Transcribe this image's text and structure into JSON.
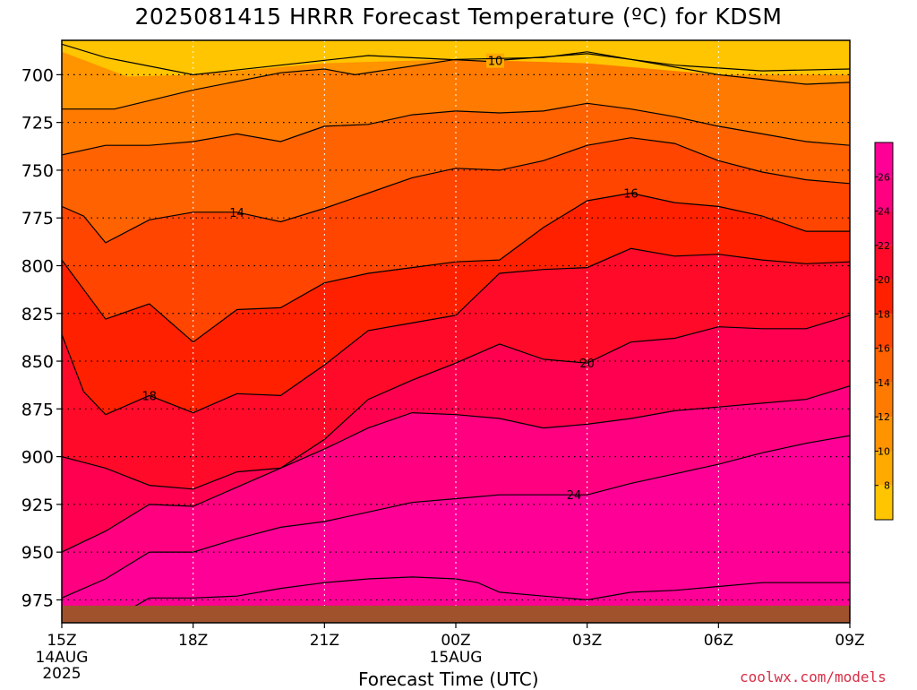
{
  "title": "2025081415 HRRR Forecast Temperature (ºC) for KDSM",
  "credit": "coolwx.com/models",
  "chart_data": {
    "type": "contour",
    "xlabel": "Forecast Time (UTC)",
    "ylabel": "",
    "y_axis_inverted": true,
    "xlim": [
      0,
      18
    ],
    "ylim": [
      682,
      987
    ],
    "x_tick_values": [
      0,
      3,
      6,
      9,
      12,
      15,
      18
    ],
    "x_ticks": [
      {
        "label": "15Z",
        "sub": [
          "14AUG",
          "2025"
        ]
      },
      {
        "label": "18Z",
        "sub": []
      },
      {
        "label": "21Z",
        "sub": []
      },
      {
        "label": "00Z",
        "sub": [
          "15AUG"
        ]
      },
      {
        "label": "03Z",
        "sub": []
      },
      {
        "label": "06Z",
        "sub": []
      },
      {
        "label": "09Z",
        "sub": []
      }
    ],
    "y_ticks": [
      700,
      725,
      750,
      775,
      800,
      825,
      850,
      875,
      900,
      925,
      950,
      975
    ],
    "grid": true,
    "colorbar": {
      "position": "right",
      "ticks": [
        8,
        10,
        12,
        14,
        16,
        18,
        20,
        22,
        24,
        26
      ],
      "bins": [
        {
          "from": 6,
          "to": 8,
          "color": "#ffc500"
        },
        {
          "from": 8,
          "to": 10,
          "color": "#ffaa00"
        },
        {
          "from": 10,
          "to": 12,
          "color": "#ff9300"
        },
        {
          "from": 12,
          "to": 14,
          "color": "#ff7a00"
        },
        {
          "from": 14,
          "to": 16,
          "color": "#ff6200"
        },
        {
          "from": 16,
          "to": 18,
          "color": "#ff4500"
        },
        {
          "from": 18,
          "to": 20,
          "color": "#ff2000"
        },
        {
          "from": 20,
          "to": 22,
          "color": "#ff0a28"
        },
        {
          "from": 22,
          "to": 24,
          "color": "#ff0050"
        },
        {
          "from": 24,
          "to": 26,
          "color": "#ff0080"
        },
        {
          "from": 26,
          "to": 28,
          "color": "#ff0096"
        }
      ]
    },
    "ground_color": "#a0522d",
    "surface_pressure": 978,
    "contours": [
      {
        "level": 8,
        "points": [
          [
            0,
            688
          ],
          [
            1.5,
            701
          ],
          [
            3,
            700
          ],
          [
            6,
            694
          ],
          [
            9,
            692
          ],
          [
            12,
            694
          ],
          [
            15,
            700
          ],
          [
            18,
            700
          ]
        ]
      },
      {
        "level": 10,
        "points": [
          [
            0,
            684
          ],
          [
            1,
            691
          ],
          [
            3,
            700
          ],
          [
            5,
            695
          ],
          [
            7,
            690
          ],
          [
            9.7,
            693
          ],
          [
            12,
            689
          ],
          [
            14,
            695
          ],
          [
            16,
            698
          ],
          [
            18,
            697
          ]
        ],
        "label": {
          "x": 9.9,
          "text": "10"
        }
      },
      {
        "level": 11,
        "points": [
          [
            0,
            691
          ],
          [
            2,
            699
          ],
          [
            3,
            706
          ],
          [
            5,
            701
          ],
          [
            7,
            694
          ],
          [
            9.7,
            692
          ],
          [
            12,
            689
          ],
          [
            14,
            697
          ],
          [
            16,
            700
          ],
          [
            18,
            699
          ]
        ]
      },
      {
        "level": 12,
        "points": [
          [
            0,
            718
          ],
          [
            1.2,
            718
          ],
          [
            3,
            708
          ],
          [
            5,
            699
          ],
          [
            6,
            697
          ],
          [
            6.7,
            700
          ],
          [
            9,
            692
          ],
          [
            11,
            691
          ],
          [
            12,
            688
          ],
          [
            13,
            692
          ],
          [
            15,
            700
          ],
          [
            17,
            705
          ],
          [
            18,
            704
          ]
        ]
      },
      {
        "level": 13,
        "points": [
          [
            0,
            742
          ],
          [
            1,
            737
          ],
          [
            2,
            737
          ],
          [
            3,
            735
          ],
          [
            4,
            731
          ],
          [
            5,
            735
          ],
          [
            6,
            727
          ],
          [
            7,
            726
          ],
          [
            8,
            721
          ],
          [
            9,
            719
          ],
          [
            10,
            720
          ],
          [
            11,
            719
          ],
          [
            12,
            715
          ],
          [
            13,
            718
          ],
          [
            14,
            722
          ],
          [
            15,
            727
          ],
          [
            16,
            731
          ],
          [
            17,
            735
          ],
          [
            18,
            737
          ]
        ]
      },
      {
        "level": 14,
        "points": [
          [
            0,
            769
          ],
          [
            0.5,
            774
          ],
          [
            1,
            788
          ],
          [
            2,
            776
          ],
          [
            3,
            772
          ],
          [
            4,
            772
          ],
          [
            5,
            777
          ],
          [
            6,
            770
          ],
          [
            7,
            762
          ],
          [
            8,
            754
          ],
          [
            9,
            749
          ],
          [
            10,
            750
          ],
          [
            11,
            745
          ],
          [
            12,
            737
          ],
          [
            13,
            733
          ],
          [
            14,
            736
          ],
          [
            15,
            745
          ],
          [
            16,
            751
          ],
          [
            17,
            755
          ],
          [
            18,
            757
          ]
        ],
        "label": {
          "x": 4,
          "text": "14"
        }
      },
      {
        "level": 16,
        "points": [
          [
            0,
            797
          ],
          [
            1,
            828
          ],
          [
            2,
            820
          ],
          [
            3,
            840
          ],
          [
            4,
            823
          ],
          [
            5,
            822
          ],
          [
            6,
            809
          ],
          [
            7,
            804
          ],
          [
            8,
            801
          ],
          [
            9,
            798
          ],
          [
            10,
            797
          ],
          [
            11,
            780
          ],
          [
            12,
            766
          ],
          [
            13,
            762
          ],
          [
            14,
            767
          ],
          [
            15,
            769
          ],
          [
            16,
            774
          ],
          [
            17,
            782
          ],
          [
            18,
            782
          ]
        ],
        "label": {
          "x": 13,
          "text": "16"
        }
      },
      {
        "level": 18,
        "points": [
          [
            0,
            836
          ],
          [
            0.5,
            866
          ],
          [
            1,
            878
          ],
          [
            2,
            868
          ],
          [
            3,
            877
          ],
          [
            4,
            867
          ],
          [
            5,
            868
          ],
          [
            6,
            852
          ],
          [
            7,
            834
          ],
          [
            8,
            830
          ],
          [
            9,
            826
          ],
          [
            10,
            804
          ],
          [
            11,
            802
          ],
          [
            12,
            801
          ],
          [
            13,
            791
          ],
          [
            14,
            795
          ],
          [
            15,
            794
          ],
          [
            16,
            797
          ],
          [
            17,
            799
          ],
          [
            18,
            798
          ]
        ],
        "label": {
          "x": 2,
          "text": "18"
        }
      },
      {
        "level": 20,
        "points": [
          [
            0,
            900
          ],
          [
            1,
            906
          ],
          [
            2,
            915
          ],
          [
            3,
            917
          ],
          [
            4,
            908
          ],
          [
            5,
            906
          ],
          [
            6,
            891
          ],
          [
            7,
            870
          ],
          [
            8,
            860
          ],
          [
            9,
            851
          ],
          [
            10,
            841
          ],
          [
            11,
            849
          ],
          [
            12,
            851
          ],
          [
            13,
            840
          ],
          [
            14,
            838
          ],
          [
            15,
            832
          ],
          [
            16,
            833
          ],
          [
            17,
            833
          ],
          [
            18,
            826
          ]
        ],
        "label": {
          "x": 12,
          "text": "20"
        }
      },
      {
        "level": 22,
        "points": [
          [
            0,
            950
          ],
          [
            1,
            939
          ],
          [
            2,
            925
          ],
          [
            3,
            926
          ],
          [
            4,
            916
          ],
          [
            5,
            906
          ],
          [
            6,
            896
          ],
          [
            7,
            885
          ],
          [
            8,
            877
          ],
          [
            9,
            878
          ],
          [
            10,
            880
          ],
          [
            11,
            885
          ],
          [
            12,
            883
          ],
          [
            13,
            880
          ],
          [
            14,
            876
          ],
          [
            15,
            874
          ],
          [
            16,
            872
          ],
          [
            17,
            870
          ],
          [
            18,
            863
          ]
        ]
      },
      {
        "level": 24,
        "points": [
          [
            0,
            974
          ],
          [
            1,
            964
          ],
          [
            2,
            950
          ],
          [
            3,
            950
          ],
          [
            4,
            943
          ],
          [
            5,
            937
          ],
          [
            6,
            934
          ],
          [
            7,
            929
          ],
          [
            8,
            924
          ],
          [
            9,
            922
          ],
          [
            10,
            920
          ],
          [
            11,
            920
          ],
          [
            12,
            920
          ],
          [
            13,
            914
          ],
          [
            14,
            909
          ],
          [
            15,
            904
          ],
          [
            16,
            898
          ],
          [
            17,
            893
          ],
          [
            18,
            889
          ]
        ],
        "label": {
          "x": 11.7,
          "text": "24"
        }
      },
      {
        "level": 26,
        "points": [
          [
            1,
            987
          ],
          [
            2,
            974
          ],
          [
            3,
            974
          ],
          [
            4,
            973
          ],
          [
            5,
            969
          ],
          [
            6,
            966
          ],
          [
            7,
            964
          ],
          [
            8,
            963
          ],
          [
            9,
            964
          ],
          [
            9.5,
            966
          ],
          [
            10,
            971
          ],
          [
            11,
            973
          ],
          [
            12,
            975
          ],
          [
            13,
            971
          ],
          [
            14,
            970
          ],
          [
            15,
            968
          ],
          [
            16,
            966
          ],
          [
            17,
            966
          ],
          [
            18,
            966
          ]
        ]
      }
    ],
    "bands": [
      {
        "color": "#ff0096",
        "lower_contour": 26
      },
      {
        "color": "#ff0080",
        "lower_contour": 24
      },
      {
        "color": "#ff0050",
        "lower_contour": 22
      },
      {
        "color": "#ff0a28",
        "lower_contour": 20
      },
      {
        "color": "#ff2000",
        "lower_contour": 18
      },
      {
        "color": "#ff4500",
        "lower_contour": 16
      },
      {
        "color": "#ff6200",
        "lower_contour": 14
      },
      {
        "color": "#ff7a00",
        "lower_contour": 13
      },
      {
        "color": "#ff9300",
        "lower_contour": 12
      },
      {
        "color": "#ffaa00",
        "lower_contour": 10
      },
      {
        "color": "#ffc500",
        "lower_contour": 8
      }
    ],
    "base_color": "#ff0096"
  }
}
